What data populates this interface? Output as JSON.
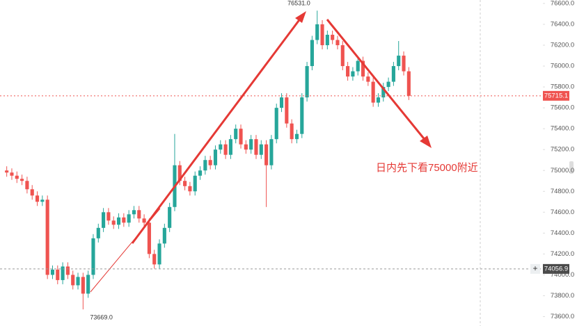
{
  "chart_data": {
    "type": "candlestick",
    "ylim": [
      73510,
      76633
    ],
    "yticks": [
      {
        "value": 73600,
        "label": "73600.0"
      },
      {
        "value": 73800,
        "label": "73800.0"
      },
      {
        "value": 74000,
        "label": "74000.0"
      },
      {
        "value": 74200,
        "label": "74200.0"
      },
      {
        "value": 74400,
        "label": "74400.0"
      },
      {
        "value": 74600,
        "label": "74600.0"
      },
      {
        "value": 74800,
        "label": "74800.0"
      },
      {
        "value": 75000,
        "label": "75000.0"
      },
      {
        "value": 75200,
        "label": "75200.0"
      },
      {
        "value": 75400,
        "label": "75400.0"
      },
      {
        "value": 75600,
        "label": "75600.0"
      },
      {
        "value": 75800,
        "label": "75800.0"
      },
      {
        "value": 76000,
        "label": "76000.0"
      },
      {
        "value": 76200,
        "label": "76200.0"
      },
      {
        "value": 76400,
        "label": "76400.0"
      },
      {
        "value": 76600,
        "label": "76600.0"
      }
    ],
    "up_color": "#26a69a",
    "down_color": "#ef5350",
    "open": [
      75000,
      74980,
      74950,
      74920,
      74900,
      74820,
      74760,
      74700,
      74720,
      74000,
      74050,
      73950,
      74080,
      74000,
      73900,
      73980,
      73820,
      74000,
      74350,
      74450,
      74600,
      74520,
      74480,
      74550,
      74500,
      74580,
      74620,
      74540,
      74500,
      74200,
      74100,
      74300,
      74450,
      74650,
      75050,
      74900,
      74850,
      74800,
      74950,
      75000,
      75100,
      75050,
      75200,
      75250,
      75150,
      75300,
      75400,
      75250,
      75200,
      75300,
      75150,
      75250,
      75050,
      75300,
      75600,
      75700,
      75450,
      75300,
      75350,
      75700,
      76000,
      76250,
      76400,
      76200,
      76300,
      76250,
      76200,
      76000,
      75900,
      75950,
      76050,
      75900,
      75850,
      75650,
      75700,
      75800,
      75850,
      76000,
      76100,
      75950
    ],
    "high": [
      75040,
      75020,
      74990,
      74960,
      74940,
      74860,
      74800,
      74760,
      74760,
      74090,
      74090,
      74120,
      74120,
      74040,
      74020,
      74020,
      74040,
      74390,
      74490,
      74640,
      74640,
      74560,
      74590,
      74590,
      74620,
      74660,
      74660,
      74580,
      74540,
      74240,
      74340,
      74490,
      74690,
      75350,
      75090,
      74940,
      74890,
      74990,
      75040,
      75140,
      75140,
      75240,
      75290,
      75290,
      75340,
      75440,
      75440,
      75290,
      75340,
      75340,
      75290,
      75290,
      75340,
      75640,
      75740,
      75740,
      75490,
      75390,
      75740,
      76040,
      76290,
      76531,
      76440,
      76340,
      76340,
      76290,
      76240,
      76040,
      75990,
      76090,
      76090,
      75940,
      75890,
      75740,
      75840,
      75890,
      76040,
      76240,
      76140,
      75990
    ],
    "low": [
      74940,
      74910,
      74880,
      74860,
      74780,
      74720,
      74660,
      74660,
      73960,
      73960,
      73910,
      73910,
      73960,
      73860,
      73860,
      73669,
      73780,
      73960,
      74310,
      74410,
      74480,
      74440,
      74440,
      74460,
      74460,
      74540,
      74500,
      74460,
      74160,
      74060,
      74060,
      74260,
      74410,
      74610,
      74860,
      74810,
      74760,
      74760,
      74910,
      74960,
      75010,
      75010,
      75160,
      75110,
      75110,
      75260,
      75210,
      75160,
      75160,
      75110,
      75110,
      74650,
      75010,
      75260,
      75560,
      75410,
      75260,
      75260,
      75310,
      75660,
      75960,
      76210,
      76160,
      76160,
      76210,
      76160,
      75960,
      75860,
      75860,
      75910,
      75860,
      75810,
      75610,
      75610,
      75660,
      75760,
      75810,
      75960,
      75910,
      75675
    ],
    "close": [
      74980,
      74950,
      74920,
      74900,
      74820,
      74760,
      74700,
      74720,
      74000,
      74050,
      73950,
      74080,
      74000,
      73900,
      73980,
      73820,
      74000,
      74350,
      74450,
      74600,
      74520,
      74480,
      74550,
      74500,
      74580,
      74620,
      74540,
      74500,
      74200,
      74100,
      74300,
      74450,
      74650,
      75050,
      74900,
      74850,
      74800,
      74950,
      75000,
      75100,
      75050,
      75200,
      75250,
      75150,
      75300,
      75400,
      75250,
      75200,
      75300,
      75150,
      75250,
      75050,
      75300,
      75600,
      75700,
      75450,
      75300,
      75350,
      75700,
      76000,
      76250,
      76400,
      76200,
      76300,
      76250,
      76200,
      76000,
      75900,
      75950,
      76050,
      75900,
      75850,
      75650,
      75700,
      75800,
      75850,
      76000,
      76100,
      75950,
      75715.1
    ],
    "last_price": 75715.1,
    "crosshair_price": 74056.9,
    "high_marker": {
      "value": 76531,
      "label": "76531.0"
    },
    "low_marker": {
      "value": 73669,
      "label": "73669.0"
    },
    "annotation": "日内先下看75000附近"
  }
}
